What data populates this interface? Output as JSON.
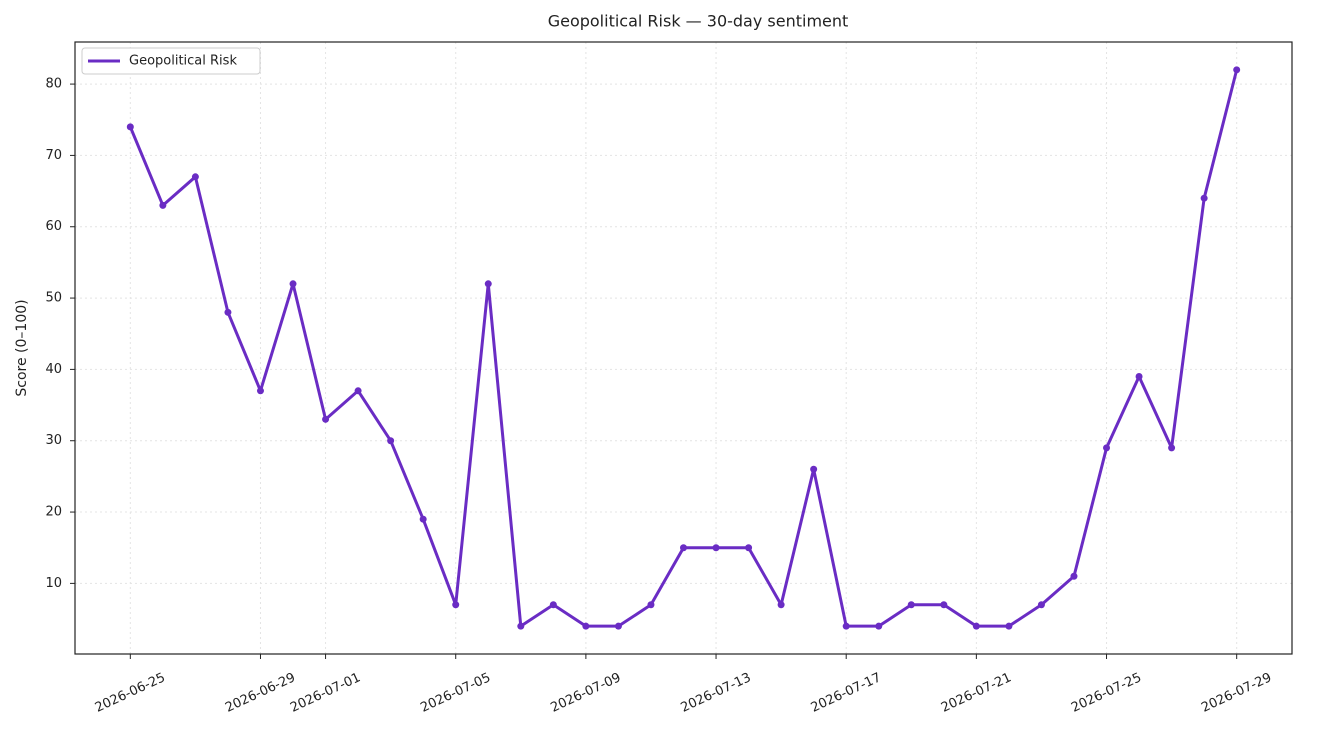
{
  "chart_data": {
    "type": "line",
    "title": "Geopolitical Risk — 30-day sentiment",
    "y_label": "Score (0–100)",
    "x": [
      "2026-06-25",
      "2026-06-26",
      "2026-06-27",
      "2026-06-28",
      "2026-06-29",
      "2026-06-30",
      "2026-07-01",
      "2026-07-02",
      "2026-07-03",
      "2026-07-04",
      "2026-07-05",
      "2026-07-06",
      "2026-07-07",
      "2026-07-08",
      "2026-07-09",
      "2026-07-10",
      "2026-07-11",
      "2026-07-12",
      "2026-07-13",
      "2026-07-14",
      "2026-07-15",
      "2026-07-16",
      "2026-07-17",
      "2026-07-18",
      "2026-07-19",
      "2026-07-20",
      "2026-07-21",
      "2026-07-22",
      "2026-07-23",
      "2026-07-24",
      "2026-07-25",
      "2026-07-26",
      "2026-07-27",
      "2026-07-28",
      "2026-07-29"
    ],
    "series": [
      {
        "name": "Geopolitical Risk",
        "color": "#6a2cc4",
        "values": [
          74,
          63,
          67,
          48,
          37,
          52,
          33,
          37,
          30,
          19,
          7,
          52,
          4,
          7,
          4,
          4,
          7,
          15,
          15,
          15,
          7,
          26,
          4,
          4,
          7,
          7,
          4,
          4,
          7,
          11,
          29,
          39,
          29,
          64,
          82
        ]
      }
    ],
    "xlim": [
      "2026-06-23T07:12:00Z",
      "2026-07-30T16:48:00Z"
    ],
    "ylim": [
      0.1,
      85.9
    ],
    "xticks": [
      "2026-06-25",
      "2026-06-29",
      "2026-07-01",
      "2026-07-05",
      "2026-07-09",
      "2026-07-13",
      "2026-07-17",
      "2026-07-21",
      "2026-07-25",
      "2026-07-29"
    ],
    "yticks": [
      10,
      20,
      30,
      40,
      50,
      60,
      70,
      80
    ],
    "y_tick_color": "#7b3fbf",
    "grid": true,
    "legend": "upper left"
  }
}
